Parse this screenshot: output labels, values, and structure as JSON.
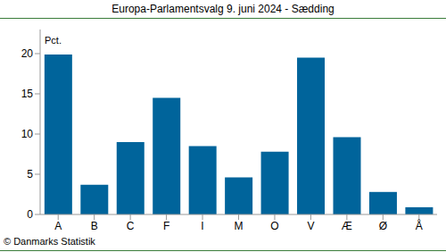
{
  "chart_data": {
    "type": "bar",
    "title": "Europa-Parlamentsvalg 9. juni 2024 - Sædding",
    "y_label": "Pct.",
    "source": "© Danmarks Statistik",
    "categories": [
      "A",
      "B",
      "C",
      "F",
      "I",
      "M",
      "O",
      "V",
      "Æ",
      "Ø",
      "Å"
    ],
    "values": [
      19.9,
      3.7,
      9.0,
      14.5,
      8.5,
      4.6,
      7.8,
      19.5,
      9.6,
      2.8,
      0.9
    ],
    "color": "#00649b",
    "ylim": [
      0,
      23
    ],
    "yticks": [
      0,
      5,
      10,
      15,
      20
    ],
    "grid": false
  }
}
